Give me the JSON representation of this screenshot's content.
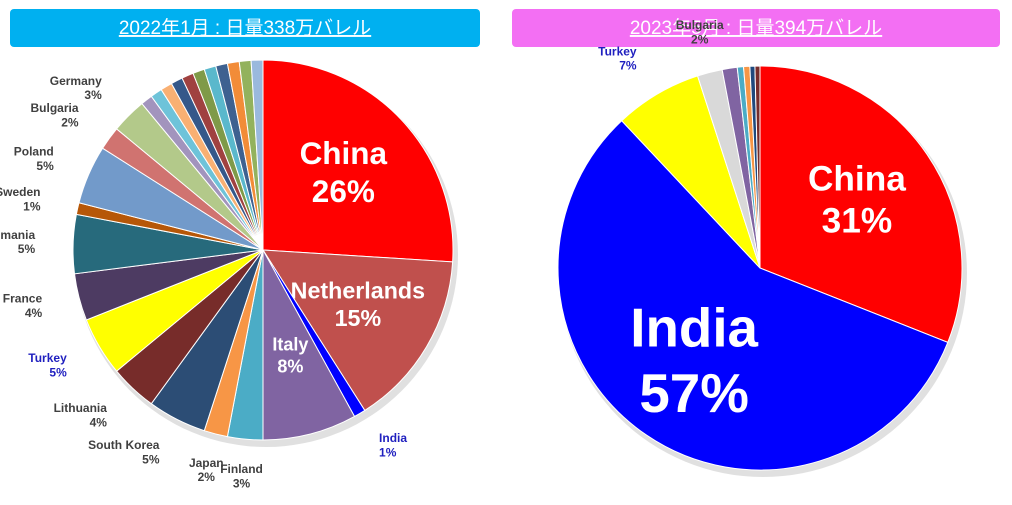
{
  "chart_data": [
    {
      "type": "pie",
      "title": "2022年1月 : 日量338万バレル",
      "title_background": "#00b0f0",
      "categories": [
        "China",
        "Netherlands",
        "India",
        "Italy",
        "Finland",
        "Japan",
        "South Korea",
        "Lithuania",
        "Turkey",
        "France",
        "Romania",
        "Sweden",
        "Poland",
        "Bulgaria",
        "Germany",
        null,
        null,
        null,
        null,
        null,
        null,
        null,
        null,
        null,
        null,
        null
      ],
      "values": [
        26,
        15,
        1,
        8,
        3,
        2,
        5,
        4,
        5,
        4,
        5,
        1,
        5,
        2,
        3,
        1,
        1,
        1,
        1,
        1,
        1,
        1,
        1,
        1,
        1,
        1
      ],
      "value_labels": [
        "26%",
        "15%",
        "1%",
        "8%",
        "3%",
        "2%",
        "5%",
        "4%",
        "5%",
        "4%",
        "5%",
        "1%",
        "5%",
        "2%",
        "3%",
        null,
        null,
        null,
        null,
        null,
        null,
        null,
        null,
        null,
        null,
        null
      ],
      "colors": [
        "#ff0000",
        "#c0504d",
        "#0000ff",
        "#8064a2",
        "#4bacc6",
        "#f79646",
        "#2c4d75",
        "#772c2a",
        "#ffff00",
        "#4d3b62",
        "#276a7c",
        "#b65708",
        "#729aca",
        "#d07370",
        "#b3c98a",
        "#a294bd",
        "#6ec3d9",
        "#f9b073",
        "#35588a",
        "#a04140",
        "#7f9a48",
        "#5ab8cc",
        "#3e6190",
        "#f28c38",
        "#93b25d",
        "#9ab9dd"
      ]
    },
    {
      "type": "pie",
      "title": "2023年5月 : 日量394万バレル",
      "title_background": "#f36ff3",
      "categories": [
        "China",
        "India",
        "Turkey",
        "Bulgaria",
        null,
        null,
        null,
        null,
        null
      ],
      "values": [
        31,
        57,
        7,
        2,
        1.2,
        0.5,
        0.5,
        0.4,
        0.4
      ],
      "value_labels": [
        "31%",
        "57%",
        "7%",
        "2%",
        null,
        null,
        null,
        null,
        null
      ],
      "colors": [
        "#ff0000",
        "#0000ff",
        "#ffff00",
        "#d9d9d9",
        "#8064a2",
        "#4bacc6",
        "#f79646",
        "#1f497d",
        "#772c2a"
      ]
    }
  ]
}
